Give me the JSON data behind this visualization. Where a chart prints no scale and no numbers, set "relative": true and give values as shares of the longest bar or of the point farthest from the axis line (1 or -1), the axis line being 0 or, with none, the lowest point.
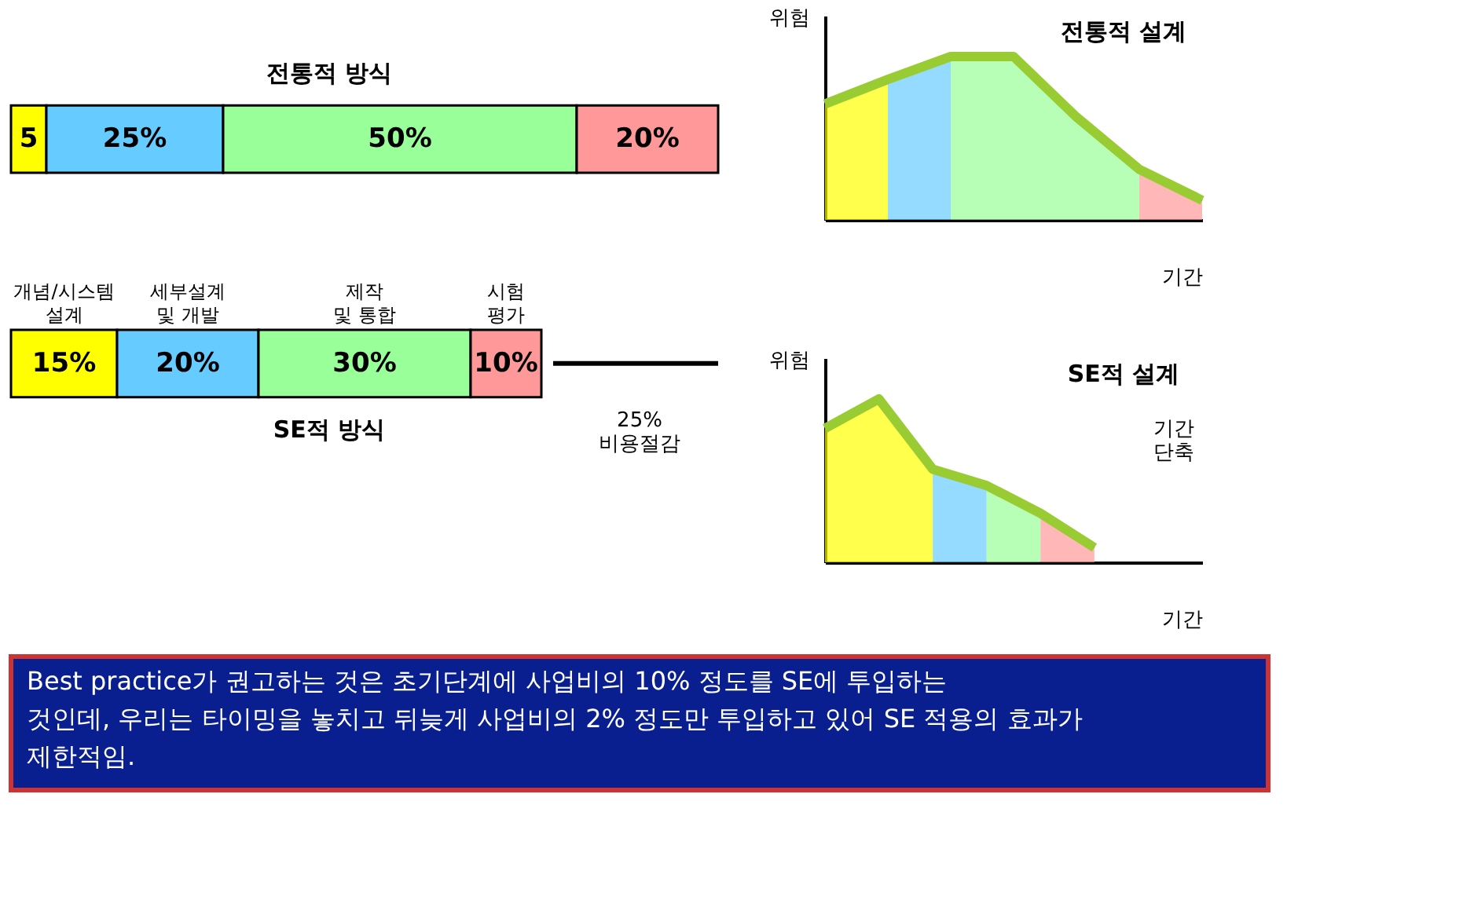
{
  "chart_data": [
    {
      "type": "bar",
      "orientation": "horizontal",
      "stacked": true,
      "categories": [
        "전통적 방식",
        "SE적 방식"
      ],
      "series": [
        {
          "name": "개념/시스템 설계",
          "color": "#ffff00",
          "values": [
            5,
            15
          ],
          "value_labels": [
            "5",
            "15%"
          ]
        },
        {
          "name": "세부설계 및 개발",
          "color": "#66ccff",
          "values": [
            25,
            20
          ],
          "value_labels": [
            "25%",
            "20%"
          ]
        },
        {
          "name": "제작 및 통합",
          "color": "#99ff99",
          "values": [
            50,
            30
          ],
          "value_labels": [
            "50%",
            "30%"
          ]
        },
        {
          "name": "시험 평가",
          "color": "#ff9999",
          "values": [
            20,
            10
          ],
          "value_labels": [
            "20%",
            "10%"
          ]
        }
      ],
      "annotations": [
        "25% 비용절감",
        "Best practice가 권고하는 것은 초기단계에 사업비의 10% 정도를 SE에 투입하는 것인데, 우리는 타이밍을 놓치고 뒤늦게 사업비의 2% 정도만 투입하고 있어 SE 적용의 효과가 제한적임."
      ],
      "legend": false
    },
    {
      "type": "area",
      "relative": true,
      "title": "전통적 설계",
      "xlabel": "기간",
      "ylabel": "위험",
      "tick_labels": false,
      "categories": [
        null,
        null,
        null,
        null,
        null,
        null,
        null
      ],
      "series": [
        {
          "color": "#ffff00",
          "values": [
            0.71,
            0.86,
            null,
            null,
            null,
            null,
            null
          ]
        },
        {
          "color": "#66ccff",
          "values": [
            null,
            0.86,
            1,
            null,
            null,
            null,
            null
          ]
        },
        {
          "color": "#99ff99",
          "values": [
            null,
            null,
            1,
            1,
            0.63,
            0.31,
            null
          ]
        },
        {
          "color": "#ff9999",
          "values": [
            null,
            null,
            null,
            null,
            null,
            0.31,
            0.12
          ]
        },
        {
          "type": "line",
          "color": "#99cc33",
          "values": [
            0.71,
            0.86,
            1,
            1,
            0.63,
            0.31,
            0.12
          ]
        }
      ]
    },
    {
      "type": "area",
      "relative": true,
      "title": "SE적 설계",
      "xlabel": "기간",
      "ylabel": "위험",
      "tick_labels": false,
      "categories": [
        null,
        null,
        null,
        null,
        null,
        null,
        null,
        null
      ],
      "series": [
        {
          "color": "#ffff00",
          "values": [
            0.82,
            1,
            0.57,
            null,
            null,
            null,
            null,
            null
          ]
        },
        {
          "color": "#66ccff",
          "values": [
            null,
            null,
            0.57,
            0.47,
            null,
            null,
            null,
            null
          ]
        },
        {
          "color": "#99ff99",
          "values": [
            null,
            null,
            null,
            0.47,
            0.3,
            null,
            null,
            null
          ]
        },
        {
          "color": "#ff9999",
          "values": [
            null,
            null,
            null,
            null,
            0.3,
            0.09,
            null,
            null
          ]
        },
        {
          "type": "line",
          "color": "#99cc33",
          "values": [
            0.82,
            1,
            0.57,
            0.47,
            0.3,
            0.09,
            null,
            null
          ]
        }
      ],
      "annotations": [
        "기간 단축"
      ]
    }
  ]
}
